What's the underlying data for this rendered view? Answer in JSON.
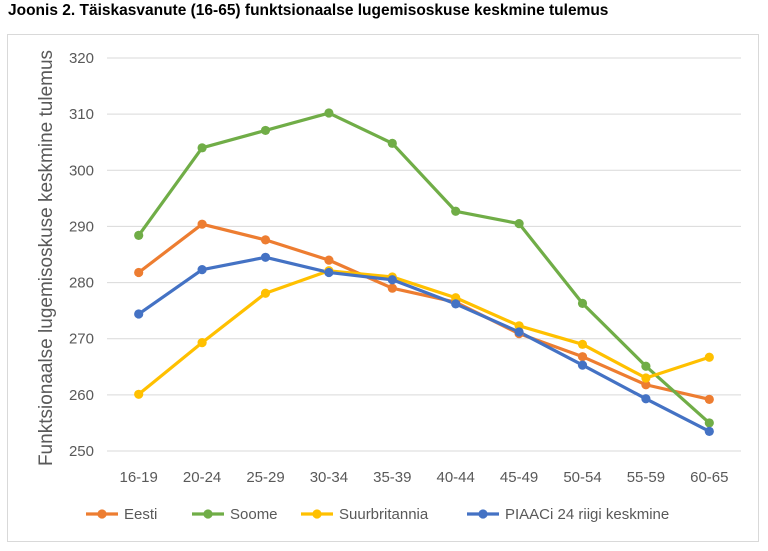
{
  "title": "Joonis 2. Täiskasvanute (16-65) funktsionaalse lugemisoskuse keskmine tulemus",
  "chart_data": {
    "type": "line",
    "title": "Joonis 2. Täiskasvanute (16-65) funktsionaalse lugemisoskuse keskmine tulemus",
    "xlabel": "",
    "ylabel": "Funktsionaalse lugemisoskuse keskmine tulemus",
    "categories": [
      "16-19",
      "20-24",
      "25-29",
      "30-34",
      "35-39",
      "40-44",
      "45-49",
      "50-54",
      "55-59",
      "60-65"
    ],
    "ylim": [
      250,
      320
    ],
    "yticks": [
      250,
      260,
      270,
      280,
      290,
      300,
      310,
      320
    ],
    "grid": true,
    "legend_position": "bottom",
    "series": [
      {
        "name": "Eesti",
        "color": "#ED7D31",
        "values": [
          281.8,
          290.4,
          287.6,
          284.0,
          279.0,
          276.5,
          270.9,
          266.8,
          261.8,
          259.2
        ]
      },
      {
        "name": "Soome",
        "color": "#70AD47",
        "values": [
          288.4,
          304.0,
          307.1,
          310.2,
          304.8,
          292.7,
          290.5,
          276.3,
          265.1,
          255.0
        ]
      },
      {
        "name": "Suurbritannia",
        "color": "#FFC000",
        "values": [
          260.1,
          269.3,
          278.1,
          282.1,
          281.0,
          277.3,
          272.3,
          269.0,
          263.0,
          266.7
        ]
      },
      {
        "name": "PIAACi 24 riigi keskmine",
        "color": "#4472C4",
        "values": [
          274.4,
          282.3,
          284.5,
          281.8,
          280.5,
          276.2,
          271.2,
          265.3,
          259.3,
          253.5
        ]
      }
    ]
  }
}
